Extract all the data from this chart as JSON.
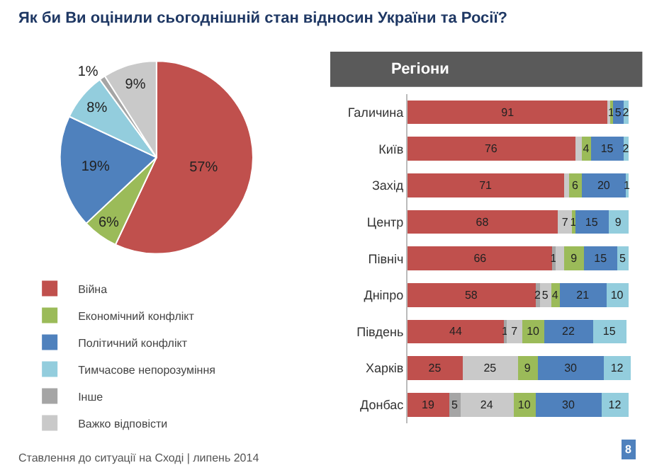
{
  "chart_data": [
    {
      "type": "pie",
      "title": "Як би Ви оцінили сьогоднішній стан відносин України та Росії?",
      "categories": [
        "Війна",
        "Економічний конфлікт",
        "Політичний конфлікт",
        "Тимчасове непорозуміння",
        "Інше",
        "Важко відповісти"
      ],
      "values": [
        57,
        6,
        19,
        8,
        1,
        9
      ],
      "value_labels": [
        "57%",
        "6%",
        "19%",
        "8%",
        "1%",
        "9%"
      ],
      "colors": [
        "#c0504d",
        "#9bbb59",
        "#4f81bd",
        "#93cddd",
        "#a5a5a5",
        "#c9c9c9"
      ],
      "legend": "bottom left",
      "annotations": [
        "Ставлення до ситуації на Сході | липень 2014",
        "8"
      ]
    },
    {
      "type": "bar",
      "title": "Регіони",
      "orientation": "horizontal",
      "stacked": true,
      "categories": [
        "Галичина",
        "Київ",
        "Захід",
        "Центр",
        "Північ",
        "Дніпро",
        "Південь",
        "Харків",
        "Донбас"
      ],
      "series": [
        {
          "color": "#c0504d",
          "values": [
            91,
            76,
            71,
            68,
            66,
            58,
            44,
            25,
            19
          ],
          "value_labels": [
            "91",
            "76",
            "71",
            "68",
            "66",
            "58",
            "44",
            "25",
            "19"
          ]
        },
        {
          "color": "#a5a5a5",
          "values": [
            null,
            null,
            null,
            null,
            1,
            2,
            1,
            null,
            5
          ],
          "value_labels": [
            null,
            null,
            null,
            null,
            "1",
            "2",
            "1",
            null,
            "5"
          ]
        },
        {
          "color": "#c9c9c9",
          "values": [
            1,
            3,
            2,
            7,
            4,
            5,
            7,
            25,
            24
          ],
          "value_labels": [
            null,
            null,
            null,
            "7",
            null,
            "5",
            "7",
            "25",
            "24"
          ]
        },
        {
          "color": "#9bbb59",
          "values": [
            1,
            4,
            6,
            1,
            9,
            4,
            10,
            9,
            10
          ],
          "value_labels": [
            "1",
            "4",
            "6",
            "1",
            "9",
            "4",
            "10",
            "9",
            "10"
          ]
        },
        {
          "color": "#4f81bd",
          "values": [
            5,
            15,
            20,
            15,
            15,
            21,
            22,
            30,
            30
          ],
          "value_labels": [
            "5",
            "15",
            "20",
            "15",
            "15",
            "21",
            "22",
            "30",
            "30"
          ]
        },
        {
          "color": "#93cddd",
          "values": [
            2,
            2,
            1,
            9,
            5,
            10,
            15,
            12,
            12
          ],
          "value_labels": [
            "2",
            "2",
            "1",
            "9",
            "5",
            "10",
            "15",
            "12",
            "12"
          ]
        }
      ]
    }
  ]
}
